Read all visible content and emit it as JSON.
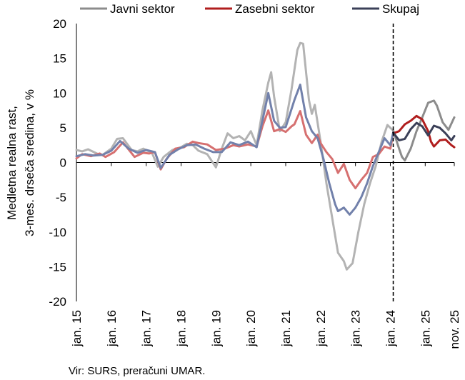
{
  "chart_data": {
    "type": "line",
    "title": "",
    "ylabel_line1": "Medletna realna rast,",
    "ylabel_line2": "3-mes. drseča sredina, v %",
    "source": "Vir: SURS, preračuni UMAR.",
    "ylim": [
      -20,
      20
    ],
    "yticks": [
      20,
      15,
      10,
      5,
      0,
      -5,
      -10,
      -15,
      -20
    ],
    "xlim": [
      "2015-01",
      "2025-11"
    ],
    "xticks": [
      {
        "label": "jan. 15",
        "date": "2015-01"
      },
      {
        "label": "jan. 16",
        "date": "2016-01"
      },
      {
        "label": "jan. 17",
        "date": "2017-01"
      },
      {
        "label": "jan. 18",
        "date": "2018-01"
      },
      {
        "label": "jan. 19",
        "date": "2019-01"
      },
      {
        "label": "jan. 20",
        "date": "2020-01"
      },
      {
        "label": "jan. 21",
        "date": "2021-01"
      },
      {
        "label": "jan. 22",
        "date": "2022-01"
      },
      {
        "label": "jan. 23",
        "date": "2023-01"
      },
      {
        "label": "jan. 24",
        "date": "2024-01"
      },
      {
        "label": "jan. 25",
        "date": "2025-01"
      },
      {
        "label": "nov. 25",
        "date": "2025-11"
      }
    ],
    "split_date": "2024-02",
    "grid": false,
    "legend_position": "top",
    "series": [
      {
        "name": "Javni sektor",
        "color": "#8c8c8c",
        "color_before_split": "#b3b3b3",
        "points": [
          [
            "2015-01",
            1.8
          ],
          [
            "2015-03",
            1.6
          ],
          [
            "2015-05",
            1.9
          ],
          [
            "2015-08",
            1.3
          ],
          [
            "2015-10",
            1.1
          ],
          [
            "2016-01",
            2.0
          ],
          [
            "2016-03",
            3.4
          ],
          [
            "2016-05",
            3.5
          ],
          [
            "2016-08",
            1.8
          ],
          [
            "2016-10",
            1.6
          ],
          [
            "2016-12",
            2.0
          ],
          [
            "2017-03",
            1.4
          ],
          [
            "2017-05",
            -0.6
          ],
          [
            "2017-07",
            0.8
          ],
          [
            "2017-10",
            1.8
          ],
          [
            "2018-01",
            2.2
          ],
          [
            "2018-03",
            2.7
          ],
          [
            "2018-05",
            2.5
          ],
          [
            "2018-07",
            1.7
          ],
          [
            "2018-10",
            1.2
          ],
          [
            "2019-01",
            -0.7
          ],
          [
            "2019-03",
            2.0
          ],
          [
            "2019-05",
            4.2
          ],
          [
            "2019-07",
            3.5
          ],
          [
            "2019-09",
            3.8
          ],
          [
            "2019-11",
            3.2
          ],
          [
            "2020-01",
            4.5
          ],
          [
            "2020-03",
            2.5
          ],
          [
            "2020-05",
            7.5
          ],
          [
            "2020-07",
            11.5
          ],
          [
            "2020-08",
            13.0
          ],
          [
            "2020-09",
            9.5
          ],
          [
            "2020-11",
            4.5
          ],
          [
            "2021-01",
            5.8
          ],
          [
            "2021-03",
            10.5
          ],
          [
            "2021-05",
            16.2
          ],
          [
            "2021-06",
            17.2
          ],
          [
            "2021-07",
            17.1
          ],
          [
            "2021-09",
            9.0
          ],
          [
            "2021-10",
            7.0
          ],
          [
            "2021-11",
            8.3
          ],
          [
            "2022-01",
            3.0
          ],
          [
            "2022-03",
            -3.0
          ],
          [
            "2022-05",
            -8.0
          ],
          [
            "2022-07",
            -13.0
          ],
          [
            "2022-09",
            -14.2
          ],
          [
            "2022-10",
            -15.4
          ],
          [
            "2022-12",
            -14.5
          ],
          [
            "2023-02",
            -10.0
          ],
          [
            "2023-04",
            -6.0
          ],
          [
            "2023-06",
            -3.0
          ],
          [
            "2023-08",
            -0.5
          ],
          [
            "2023-10",
            3.0
          ],
          [
            "2023-12",
            5.4
          ],
          [
            "2024-02",
            4.6
          ],
          [
            "2024-04",
            2.0
          ],
          [
            "2024-05",
            0.8
          ],
          [
            "2024-06",
            0.3
          ],
          [
            "2024-08",
            2.0
          ],
          [
            "2024-10",
            4.5
          ],
          [
            "2024-12",
            6.5
          ],
          [
            "2025-02",
            8.6
          ],
          [
            "2025-04",
            8.9
          ],
          [
            "2025-05",
            8.2
          ],
          [
            "2025-07",
            5.8
          ],
          [
            "2025-09",
            4.7
          ],
          [
            "2025-11",
            6.5
          ]
        ]
      },
      {
        "name": "Zasebni sektor",
        "color": "#b01e1e",
        "color_before_split": "#d67070",
        "points": [
          [
            "2015-01",
            0.6
          ],
          [
            "2015-03",
            1.2
          ],
          [
            "2015-06",
            0.9
          ],
          [
            "2015-09",
            1.3
          ],
          [
            "2015-11",
            0.8
          ],
          [
            "2016-02",
            1.5
          ],
          [
            "2016-05",
            2.9
          ],
          [
            "2016-09",
            0.8
          ],
          [
            "2016-12",
            1.4
          ],
          [
            "2017-02",
            1.3
          ],
          [
            "2017-04",
            1.5
          ],
          [
            "2017-06",
            -1.0
          ],
          [
            "2017-08",
            0.5
          ],
          [
            "2017-11",
            2.0
          ],
          [
            "2018-02",
            2.2
          ],
          [
            "2018-05",
            3.0
          ],
          [
            "2018-07",
            2.8
          ],
          [
            "2018-10",
            2.6
          ],
          [
            "2019-01",
            1.8
          ],
          [
            "2019-04",
            2.0
          ],
          [
            "2019-07",
            2.5
          ],
          [
            "2019-09",
            2.3
          ],
          [
            "2019-12",
            2.6
          ],
          [
            "2020-03",
            2.3
          ],
          [
            "2020-05",
            5.2
          ],
          [
            "2020-07",
            7.5
          ],
          [
            "2020-09",
            4.5
          ],
          [
            "2020-11",
            4.8
          ],
          [
            "2021-01",
            4.4
          ],
          [
            "2021-03",
            5.2
          ],
          [
            "2021-04",
            5.5
          ],
          [
            "2021-06",
            7.4
          ],
          [
            "2021-08",
            4.0
          ],
          [
            "2021-10",
            2.8
          ],
          [
            "2021-12",
            4.0
          ],
          [
            "2022-01",
            2.8
          ],
          [
            "2022-03",
            1.5
          ],
          [
            "2022-05",
            0.5
          ],
          [
            "2022-07",
            -1.5
          ],
          [
            "2022-09",
            -0.2
          ],
          [
            "2022-11",
            -2.5
          ],
          [
            "2023-01",
            -3.7
          ],
          [
            "2023-03",
            -2.5
          ],
          [
            "2023-05",
            -1.5
          ],
          [
            "2023-07",
            0.8
          ],
          [
            "2023-09",
            1.2
          ],
          [
            "2023-11",
            2.3
          ],
          [
            "2024-01",
            2.0
          ],
          [
            "2024-02",
            4.2
          ],
          [
            "2024-04",
            4.5
          ],
          [
            "2024-06",
            5.5
          ],
          [
            "2024-08",
            6.0
          ],
          [
            "2024-10",
            6.7
          ],
          [
            "2024-12",
            6.2
          ],
          [
            "2025-02",
            4.5
          ],
          [
            "2025-03",
            3.0
          ],
          [
            "2025-04",
            2.3
          ],
          [
            "2025-06",
            3.2
          ],
          [
            "2025-08",
            3.3
          ],
          [
            "2025-10",
            2.5
          ],
          [
            "2025-11",
            2.2
          ]
        ]
      },
      {
        "name": "Skupaj",
        "color": "#3b4058",
        "color_before_split": "#7281ab",
        "points": [
          [
            "2015-01",
            0.9
          ],
          [
            "2015-04",
            1.2
          ],
          [
            "2015-07",
            1.0
          ],
          [
            "2015-10",
            1.1
          ],
          [
            "2016-01",
            1.7
          ],
          [
            "2016-04",
            3.1
          ],
          [
            "2016-07",
            2.0
          ],
          [
            "2016-10",
            1.4
          ],
          [
            "2017-01",
            1.8
          ],
          [
            "2017-04",
            1.5
          ],
          [
            "2017-06",
            -0.8
          ],
          [
            "2017-09",
            1.1
          ],
          [
            "2017-12",
            1.9
          ],
          [
            "2018-03",
            2.5
          ],
          [
            "2018-06",
            2.6
          ],
          [
            "2018-09",
            2.0
          ],
          [
            "2018-12",
            1.5
          ],
          [
            "2019-03",
            1.5
          ],
          [
            "2019-06",
            2.9
          ],
          [
            "2019-09",
            2.5
          ],
          [
            "2019-12",
            3.0
          ],
          [
            "2020-03",
            2.2
          ],
          [
            "2020-05",
            6.0
          ],
          [
            "2020-07",
            10.0
          ],
          [
            "2020-09",
            6.0
          ],
          [
            "2020-11",
            5.0
          ],
          [
            "2021-01",
            5.1
          ],
          [
            "2021-04",
            9.0
          ],
          [
            "2021-06",
            11.2
          ],
          [
            "2021-08",
            6.5
          ],
          [
            "2021-10",
            4.5
          ],
          [
            "2021-12",
            3.5
          ],
          [
            "2022-02",
            0.5
          ],
          [
            "2022-04",
            -3.0
          ],
          [
            "2022-06",
            -6.0
          ],
          [
            "2022-07",
            -7.0
          ],
          [
            "2022-09",
            -6.5
          ],
          [
            "2022-11",
            -7.5
          ],
          [
            "2023-01",
            -6.5
          ],
          [
            "2023-03",
            -5.0
          ],
          [
            "2023-05",
            -3.0
          ],
          [
            "2023-07",
            -0.5
          ],
          [
            "2023-09",
            1.5
          ],
          [
            "2023-11",
            3.5
          ],
          [
            "2024-01",
            2.5
          ],
          [
            "2024-02",
            4.3
          ],
          [
            "2024-04",
            3.2
          ],
          [
            "2024-06",
            3.4
          ],
          [
            "2024-08",
            4.8
          ],
          [
            "2024-10",
            5.7
          ],
          [
            "2024-12",
            5.2
          ],
          [
            "2025-02",
            3.9
          ],
          [
            "2025-04",
            5.3
          ],
          [
            "2025-06",
            5.0
          ],
          [
            "2025-08",
            4.2
          ],
          [
            "2025-10",
            3.2
          ],
          [
            "2025-11",
            3.8
          ]
        ]
      }
    ]
  }
}
